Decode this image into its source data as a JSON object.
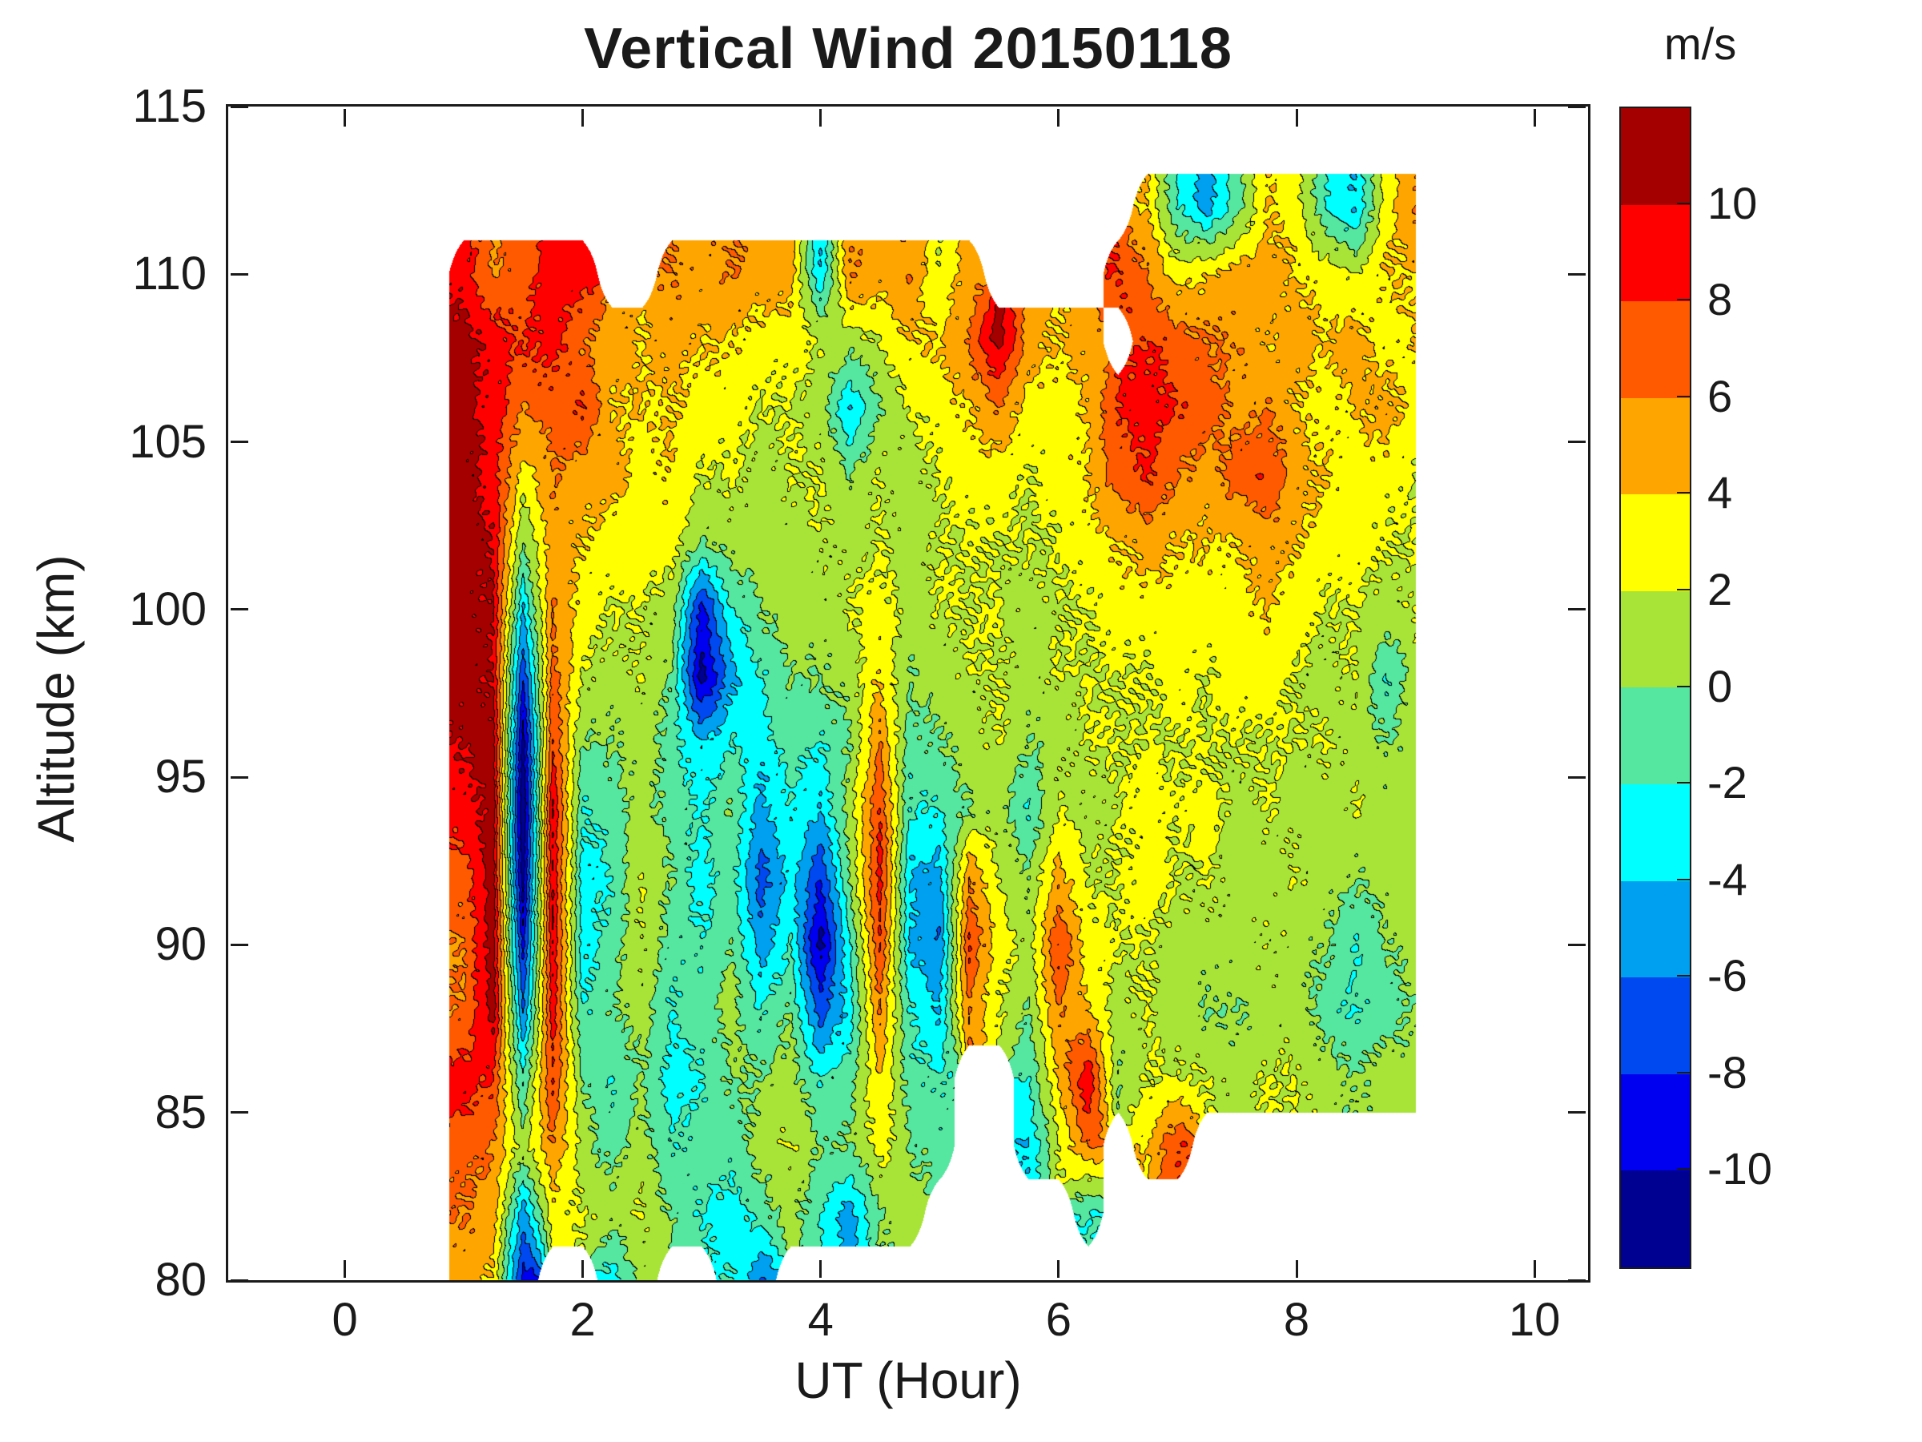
{
  "title": "Vertical Wind 20150118",
  "axes": {
    "xlabel": "UT (Hour)",
    "ylabel": "Altitude (km)",
    "x_ticks": [
      0,
      2,
      4,
      6,
      8,
      10
    ],
    "y_ticks": [
      115,
      110,
      105,
      100,
      95,
      90,
      85,
      80
    ],
    "x_range": [
      -0.98,
      10.45
    ],
    "y_range": [
      80,
      115
    ]
  },
  "colorbar": {
    "label": "m/s",
    "tick_values": [
      10,
      8,
      6,
      4,
      2,
      0,
      -2,
      -4,
      -6,
      -8,
      -10
    ],
    "value_range": [
      -12,
      12
    ],
    "band_colors_top_to_bottom": [
      "#A50000",
      "#FF0000",
      "#FF5A00",
      "#FFA500",
      "#FFFF00",
      "#A8E438",
      "#55E6A0",
      "#00FFFF",
      "#00A0F0",
      "#0048F0",
      "#0000F0",
      "#000091"
    ]
  },
  "render": {
    "noise_amplitude": 0.85
  },
  "chart_data": {
    "type": "filled_contour",
    "title": "Vertical Wind 20150118",
    "xlabel": "UT (Hour)",
    "ylabel": "Altitude (km)",
    "units": "m/s",
    "contour_levels": [
      -10,
      -8,
      -6,
      -4,
      -2,
      0,
      2,
      4,
      6,
      8,
      10
    ],
    "x_hours": [
      0.75,
      1.0,
      1.25,
      1.5,
      1.75,
      2.0,
      2.25,
      2.5,
      2.75,
      3.0,
      3.25,
      3.5,
      3.75,
      4.0,
      4.25,
      4.5,
      4.75,
      5.0,
      5.25,
      5.5,
      5.75,
      6.0,
      6.25,
      6.5,
      6.75,
      7.0,
      7.25,
      7.5,
      7.75,
      8.0,
      8.25,
      8.5,
      8.75,
      9.0
    ],
    "altitudes_km": [
      114,
      112,
      110,
      108,
      106,
      104,
      102,
      100,
      98,
      96,
      94,
      92,
      90,
      88,
      86,
      84,
      82,
      80
    ],
    "wind_ms": [
      [
        null,
        null,
        null,
        null,
        null,
        null,
        null,
        null,
        null,
        null,
        null,
        null,
        null,
        null,
        null,
        null,
        null,
        null
      ],
      [
        null,
        null,
        9,
        11,
        11,
        11,
        11,
        11,
        11,
        10,
        9,
        7,
        6,
        6,
        9,
        7,
        6,
        5
      ],
      [
        null,
        null,
        6,
        9,
        9,
        9,
        10,
        10,
        10,
        11,
        11,
        11,
        11,
        11,
        8,
        6,
        5,
        4
      ],
      [
        null,
        null,
        7,
        8,
        6,
        3,
        0,
        -4,
        -8,
        -11,
        -12,
        -11,
        -9,
        -6,
        -2,
        1,
        -5,
        -9
      ],
      [
        null,
        null,
        9,
        9,
        7,
        6,
        5,
        6,
        7,
        8,
        10,
        10,
        10,
        9,
        8,
        6,
        3,
        null
      ],
      [
        null,
        null,
        9,
        6,
        8,
        5,
        4,
        3,
        2,
        0,
        -2,
        -3,
        -3,
        -2,
        0,
        1,
        2,
        null
      ],
      [
        null,
        null,
        null,
        5,
        4,
        5,
        3,
        2,
        1,
        0,
        -1,
        -2,
        -1,
        0,
        -2,
        -1,
        1,
        -3
      ],
      [
        null,
        null,
        null,
        4,
        4,
        3,
        3,
        2,
        2,
        1,
        1,
        2,
        2,
        1,
        0,
        1,
        2,
        1
      ],
      [
        null,
        null,
        6,
        5,
        4,
        4,
        3,
        1,
        0,
        -1,
        -1,
        0,
        -1,
        -2,
        -3,
        -2,
        0,
        null
      ],
      [
        null,
        null,
        5,
        4,
        3,
        2,
        0,
        -9,
        -11,
        -4,
        -2,
        -3,
        -2,
        -1,
        -2,
        -1,
        -2,
        null
      ],
      [
        null,
        null,
        6,
        4,
        3,
        2,
        1,
        -2,
        -5,
        -2,
        0,
        -1,
        0,
        1,
        0,
        -1,
        -3,
        -2
      ],
      [
        null,
        null,
        5,
        3,
        2,
        1,
        1,
        0,
        -2,
        -3,
        -5,
        -7,
        -5,
        -2,
        0,
        1,
        -1,
        -6
      ],
      [
        null,
        null,
        5,
        3,
        2,
        2,
        1,
        1,
        0,
        -1,
        -2,
        -3,
        -2,
        0,
        1,
        2,
        1,
        null
      ],
      [
        null,
        null,
        -4,
        2,
        1,
        2,
        2,
        1,
        0,
        -2,
        -4,
        -8,
        -11,
        -7,
        -2,
        0,
        -2,
        null
      ],
      [
        null,
        null,
        6,
        1,
        -4,
        0,
        1,
        2,
        1,
        0,
        1,
        0,
        -2,
        -3,
        -1,
        0,
        -5,
        null
      ],
      [
        null,
        null,
        5,
        2,
        0,
        2,
        2,
        3,
        4,
        6,
        8,
        9,
        8,
        6,
        4,
        3,
        0,
        null
      ],
      [
        null,
        null,
        6,
        4,
        2,
        1,
        1,
        1,
        0,
        -1,
        -2,
        -4,
        -4,
        -2,
        -1,
        0,
        1,
        null
      ],
      [
        null,
        null,
        2,
        4,
        3,
        2,
        2,
        2,
        1,
        0,
        -2,
        -5,
        -6,
        -4,
        -2,
        -1,
        null,
        null
      ],
      [
        null,
        null,
        5,
        6,
        4,
        3,
        2,
        2,
        2,
        1,
        0,
        6,
        8,
        6,
        null,
        null,
        null,
        null
      ],
      [
        null,
        null,
        null,
        11,
        6,
        3,
        2,
        2,
        2,
        2,
        1,
        2,
        3,
        2,
        null,
        null,
        null,
        null
      ],
      [
        null,
        null,
        null,
        5,
        3,
        2,
        2,
        1,
        1,
        0,
        -2,
        0,
        1,
        0,
        -2,
        -4,
        null,
        null
      ],
      [
        null,
        null,
        null,
        4,
        3,
        3,
        2,
        2,
        2,
        1,
        2,
        5,
        8,
        6,
        4,
        2,
        null,
        null
      ],
      [
        null,
        null,
        null,
        5,
        4,
        4,
        3,
        2,
        2,
        2,
        1,
        2,
        3,
        4,
        10,
        6,
        -2,
        null
      ],
      [
        null,
        null,
        8,
        null,
        8,
        7,
        4,
        3,
        2,
        2,
        2,
        2,
        2,
        1,
        0,
        null,
        null,
        null
      ],
      [
        null,
        4,
        6,
        8,
        9,
        8,
        5,
        3,
        2,
        2,
        3,
        3,
        2,
        2,
        2,
        4,
        null,
        null
      ],
      [
        null,
        -2,
        3,
        7,
        8,
        6,
        4,
        3,
        3,
        2,
        2,
        2,
        1,
        1,
        2,
        8,
        null,
        null
      ],
      [
        null,
        -5,
        4,
        6,
        7,
        5,
        4,
        3,
        2,
        2,
        3,
        2,
        1,
        0,
        2,
        null,
        null,
        null
      ],
      [
        null,
        -1,
        5,
        6,
        5,
        7,
        4,
        3,
        3,
        2,
        1,
        1,
        1,
        0,
        1,
        null,
        null,
        null
      ],
      [
        null,
        4,
        5,
        4,
        6,
        8,
        5,
        4,
        3,
        2,
        2,
        1,
        2,
        1,
        2,
        null,
        null,
        null
      ],
      [
        null,
        3,
        4,
        5,
        4,
        5,
        4,
        3,
        2,
        2,
        1,
        2,
        1,
        1,
        2,
        null,
        null,
        null
      ],
      [
        null,
        -2,
        3,
        4,
        3,
        4,
        3,
        2,
        1,
        2,
        1,
        1,
        0,
        -1,
        1,
        null,
        null,
        null
      ],
      [
        null,
        -4,
        2,
        5,
        4,
        3,
        3,
        2,
        2,
        1,
        2,
        0,
        -2,
        -2,
        0,
        null,
        null,
        null
      ],
      [
        null,
        3,
        4,
        3,
        5,
        3,
        2,
        1,
        -2,
        0,
        1,
        1,
        0,
        -1,
        1,
        null,
        null,
        null
      ],
      [
        null,
        6,
        4,
        4,
        3,
        2,
        2,
        2,
        1,
        1,
        1,
        1,
        1,
        0,
        1,
        null,
        null,
        null
      ]
    ]
  }
}
